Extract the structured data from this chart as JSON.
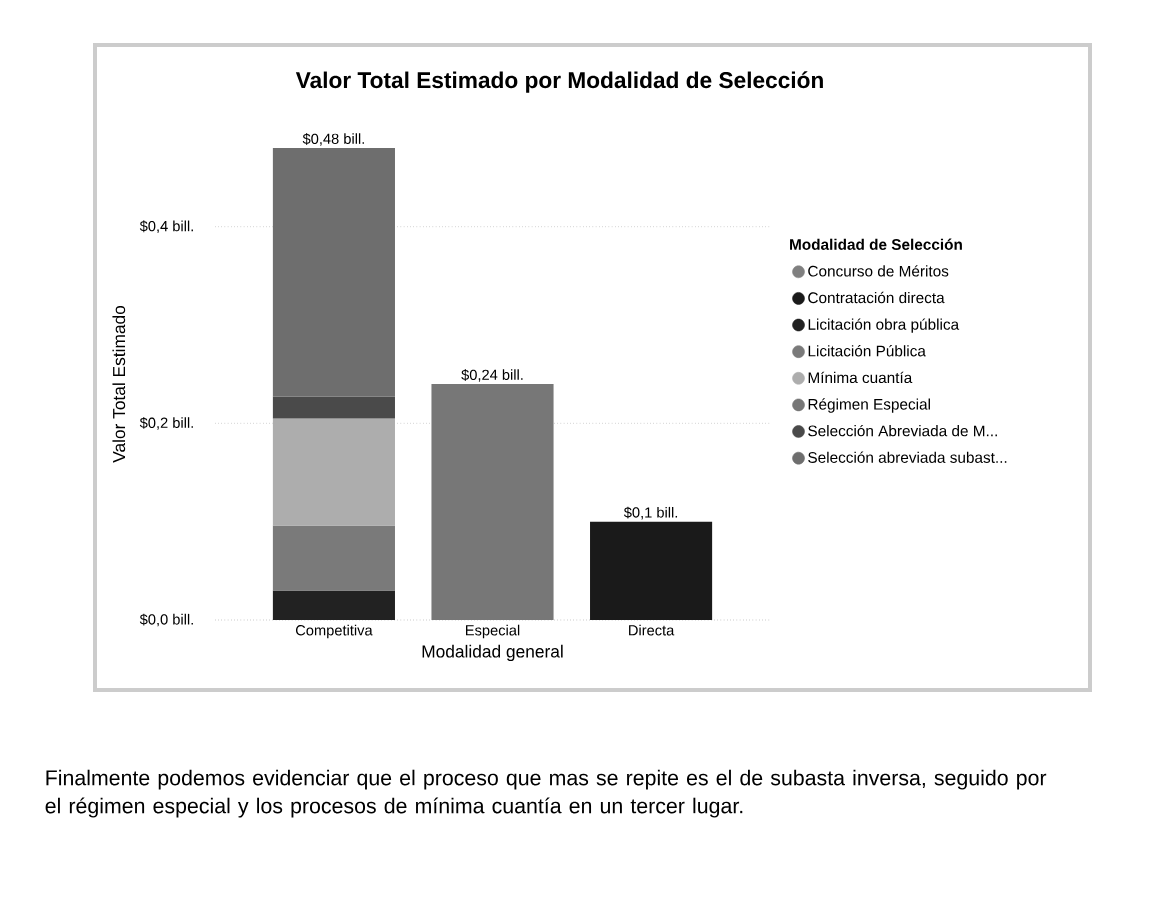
{
  "chart_data": {
    "type": "bar",
    "stacked": true,
    "title": "Valor Total Estimado por Modalidad de Selección",
    "xlabel": "Modalidad general",
    "ylabel": "Valor Total Estimado",
    "legend_title": "Modalidad de Selección",
    "categories": [
      "Competitiva",
      "Especial",
      "Directa"
    ],
    "series": [
      {
        "name": "Concurso de Méritos",
        "color": "#808080",
        "values": [
          null,
          null,
          null
        ]
      },
      {
        "name": "Contratación directa",
        "color": "#1a1a1a",
        "values": [
          null,
          null,
          0.1
        ]
      },
      {
        "name": "Licitación obra pública",
        "color": "#222222",
        "values": [
          0.03,
          null,
          null
        ]
      },
      {
        "name": "Licitación Pública",
        "color": "#7a7a7a",
        "values": [
          0.066,
          null,
          null
        ]
      },
      {
        "name": "Mínima cuantía",
        "color": "#adadad",
        "values": [
          0.109,
          null,
          null
        ]
      },
      {
        "name": "Régimen Especial",
        "color": "#777777",
        "values": [
          null,
          0.24,
          null
        ]
      },
      {
        "name": "Selección Abreviada de M...",
        "color": "#4a4a4a",
        "values": [
          0.022,
          null,
          null
        ]
      },
      {
        "name": "Selección abreviada subast...",
        "color": "#6e6e6e",
        "values": [
          0.253,
          null,
          null
        ]
      }
    ],
    "totals": [
      "$0,48 bill.",
      "$0,24 bill.",
      "$0,1 bill."
    ],
    "ylim": [
      0,
      0.48
    ],
    "yticks": [
      {
        "value": 0,
        "label": "$0,0 bill."
      },
      {
        "value": 0.2,
        "label": "$0,2 bill."
      },
      {
        "value": 0.4,
        "label": "$0,4 bill."
      }
    ],
    "grid": "y",
    "legend": "right",
    "annotations": [
      "Finalmente podemos evidenciar que el proceso que mas se repite es el de subasta inversa, seguido por el régimen especial y los procesos de mínima cuantía en un tercer lugar."
    ]
  }
}
